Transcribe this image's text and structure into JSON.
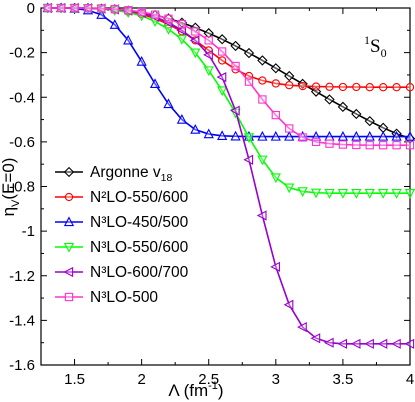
{
  "chart_data": {
    "type": "line",
    "title": "",
    "annotation": {
      "main": "S",
      "sup": "1",
      "sub": "0"
    },
    "xlabel": {
      "main": "Λ (fm",
      "sup": "-1",
      "tail": ")"
    },
    "ylabel": {
      "main": "η",
      "sub": "V",
      "tail": "(E=0)"
    },
    "xlim": [
      1.25,
      4.0
    ],
    "ylim": [
      -1.6,
      0.0
    ],
    "xticks": [
      1.5,
      2,
      2.5,
      3,
      3.5,
      4
    ],
    "xtick_labels": [
      "1.5",
      "2",
      "2.5",
      "3",
      "3.5",
      "4"
    ],
    "yticks": [
      0,
      -0.2,
      -0.4,
      -0.6,
      -0.8,
      -1,
      -1.2,
      -1.4,
      -1.6
    ],
    "ytick_labels": [
      "0",
      "-0.2",
      "-0.4",
      "-0.6",
      "-0.8",
      "-1",
      "-1.2",
      "-1.4",
      "-1.6"
    ],
    "legend_position": "middle-left",
    "series": [
      {
        "name": "Argonne v",
        "name_sub": "18",
        "color": "#000000",
        "marker": "diamond",
        "x": [
          1.3,
          1.4,
          1.5,
          1.6,
          1.7,
          1.8,
          1.9,
          2.0,
          2.1,
          2.2,
          2.3,
          2.4,
          2.5,
          2.6,
          2.7,
          2.8,
          2.9,
          3.0,
          3.1,
          3.2,
          3.3,
          3.4,
          3.5,
          3.6,
          3.7,
          3.8,
          3.9,
          4.0
        ],
        "y": [
          0.0,
          0.0,
          0.0,
          -0.001,
          -0.003,
          -0.006,
          -0.012,
          -0.02,
          -0.032,
          -0.047,
          -0.066,
          -0.088,
          -0.113,
          -0.14,
          -0.17,
          -0.202,
          -0.235,
          -0.27,
          -0.305,
          -0.34,
          -0.375,
          -0.41,
          -0.443,
          -0.475,
          -0.507,
          -0.537,
          -0.563,
          -0.585
        ]
      },
      {
        "name": "N²LO-550/600",
        "color": "#ff0000",
        "marker": "circle",
        "x": [
          1.3,
          1.4,
          1.5,
          1.6,
          1.7,
          1.8,
          1.9,
          2.0,
          2.1,
          2.2,
          2.3,
          2.4,
          2.5,
          2.6,
          2.7,
          2.8,
          2.9,
          3.0,
          3.1,
          3.2,
          3.3,
          3.4,
          3.5,
          3.6,
          3.7,
          3.8,
          3.9,
          4.0
        ],
        "y": [
          0.0,
          0.0,
          0.0,
          -0.001,
          -0.003,
          -0.008,
          -0.016,
          -0.028,
          -0.047,
          -0.073,
          -0.105,
          -0.145,
          -0.19,
          -0.235,
          -0.275,
          -0.305,
          -0.325,
          -0.338,
          -0.346,
          -0.35,
          -0.352,
          -0.353,
          -0.354,
          -0.354,
          -0.355,
          -0.355,
          -0.355,
          -0.355
        ]
      },
      {
        "name": "N³LO-450/500",
        "color": "#0000ff",
        "marker": "triangle-up",
        "x": [
          1.3,
          1.4,
          1.5,
          1.6,
          1.7,
          1.8,
          1.9,
          2.0,
          2.1,
          2.2,
          2.3,
          2.4,
          2.5,
          2.6,
          2.7,
          2.8,
          2.9,
          3.0,
          3.1,
          3.2,
          3.3,
          3.4,
          3.5,
          3.6,
          3.7,
          3.8,
          3.9,
          4.0
        ],
        "y": [
          0.0,
          0.0,
          -0.002,
          -0.01,
          -0.03,
          -0.075,
          -0.145,
          -0.24,
          -0.34,
          -0.43,
          -0.5,
          -0.545,
          -0.565,
          -0.573,
          -0.575,
          -0.576,
          -0.576,
          -0.576,
          -0.576,
          -0.576,
          -0.576,
          -0.576,
          -0.576,
          -0.576,
          -0.576,
          -0.576,
          -0.576,
          -0.576
        ]
      },
      {
        "name": "N³LO-550/600",
        "color": "#00ff00",
        "marker": "triangle-down",
        "x": [
          1.3,
          1.4,
          1.5,
          1.6,
          1.7,
          1.8,
          1.9,
          2.0,
          2.1,
          2.2,
          2.3,
          2.4,
          2.5,
          2.6,
          2.7,
          2.8,
          2.9,
          3.0,
          3.1,
          3.2,
          3.3,
          3.4,
          3.5,
          3.6,
          3.7,
          3.8,
          3.9,
          4.0
        ],
        "y": [
          0.0,
          0.0,
          0.0,
          -0.001,
          -0.004,
          -0.01,
          -0.02,
          -0.035,
          -0.06,
          -0.095,
          -0.14,
          -0.2,
          -0.28,
          -0.37,
          -0.47,
          -0.58,
          -0.68,
          -0.76,
          -0.805,
          -0.822,
          -0.828,
          -0.83,
          -0.83,
          -0.83,
          -0.83,
          -0.83,
          -0.83,
          -0.83
        ]
      },
      {
        "name": "N³LO-600/700",
        "color": "#9a00cc",
        "marker": "triangle-left",
        "x": [
          1.3,
          1.4,
          1.5,
          1.6,
          1.7,
          1.8,
          1.9,
          2.0,
          2.1,
          2.2,
          2.3,
          2.4,
          2.5,
          2.6,
          2.7,
          2.8,
          2.9,
          3.0,
          3.1,
          3.2,
          3.3,
          3.4,
          3.5,
          3.6,
          3.7,
          3.8,
          3.9,
          4.0
        ],
        "y": [
          0.0,
          0.0,
          0.0,
          -0.001,
          -0.003,
          -0.006,
          -0.012,
          -0.022,
          -0.04,
          -0.065,
          -0.1,
          -0.145,
          -0.21,
          -0.31,
          -0.46,
          -0.68,
          -0.93,
          -1.16,
          -1.33,
          -1.43,
          -1.48,
          -1.5,
          -1.505,
          -1.505,
          -1.505,
          -1.505,
          -1.505,
          -1.505
        ]
      },
      {
        "name": "N³LO-500",
        "color": "#ff33cc",
        "marker": "square",
        "x": [
          1.3,
          1.4,
          1.5,
          1.6,
          1.7,
          1.8,
          1.9,
          2.0,
          2.1,
          2.2,
          2.3,
          2.4,
          2.5,
          2.6,
          2.7,
          2.8,
          2.9,
          3.0,
          3.1,
          3.2,
          3.3,
          3.4,
          3.5,
          3.6,
          3.7,
          3.8,
          3.9,
          4.0
        ],
        "y": [
          0.0,
          0.0,
          0.0,
          -0.001,
          -0.002,
          -0.005,
          -0.01,
          -0.018,
          -0.03,
          -0.048,
          -0.072,
          -0.105,
          -0.145,
          -0.195,
          -0.26,
          -0.33,
          -0.41,
          -0.48,
          -0.54,
          -0.58,
          -0.6,
          -0.608,
          -0.612,
          -0.614,
          -0.615,
          -0.615,
          -0.615,
          -0.615
        ]
      }
    ]
  }
}
